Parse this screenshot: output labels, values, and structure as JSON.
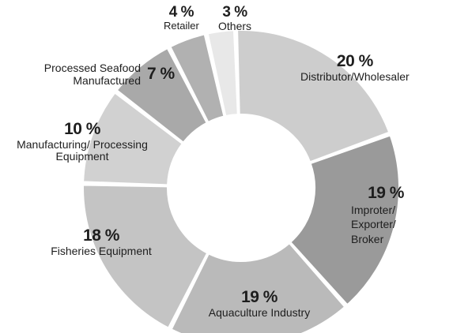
{
  "chart_data": {
    "type": "pie",
    "donut": true,
    "slices": [
      {
        "label": "Distributor/Wholesaler",
        "value": 20,
        "value_text": "20 %",
        "color": "#cdcdcd"
      },
      {
        "label": "Improter/ Exporter/ Broker",
        "value": 19,
        "value_text": "19 %",
        "color": "#9a9a9a"
      },
      {
        "label": "Aquaculture Industry",
        "value": 19,
        "value_text": "19 %",
        "color": "#bababa"
      },
      {
        "label": "Fisheries Equipment",
        "value": 18,
        "value_text": "18 %",
        "color": "#c4c4c4"
      },
      {
        "label": "Manufacturing/ Processing Equipment",
        "value": 10,
        "value_text": "10 %",
        "color": "#d1d1d1"
      },
      {
        "label": "Processed Seafood Manufactured",
        "value": 7,
        "value_text": "7 %",
        "color": "#a9a9a9"
      },
      {
        "label": "Retailer",
        "value": 4,
        "value_text": "4 %",
        "color": "#b1b1b1"
      },
      {
        "label": "Others",
        "value": 3,
        "value_text": "3 %",
        "color": "#e8e8e8"
      }
    ]
  }
}
